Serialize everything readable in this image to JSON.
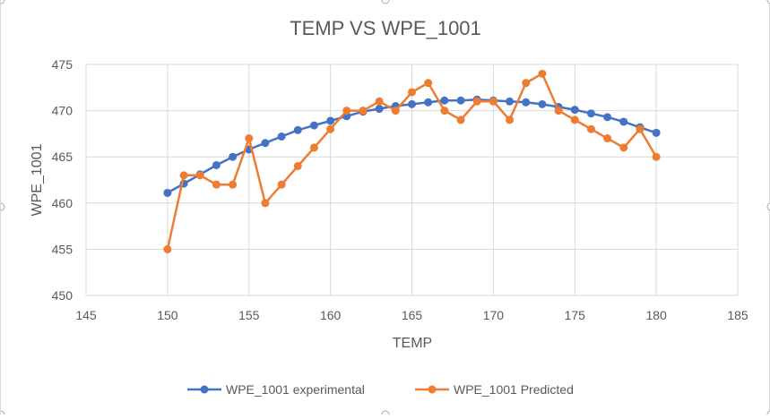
{
  "chart_data": {
    "type": "line",
    "title": "TEMP VS WPE_1001",
    "xlabel": "TEMP",
    "ylabel": "WPE_1001",
    "xlim": [
      145,
      185
    ],
    "ylim": [
      450,
      475
    ],
    "xticks": [
      145,
      150,
      155,
      160,
      165,
      170,
      175,
      180,
      185
    ],
    "yticks": [
      450,
      455,
      460,
      465,
      470,
      475
    ],
    "grid": true,
    "legend": "bottom",
    "series": [
      {
        "name": "WPE_1001 experimental",
        "color": "#4472C4",
        "x": [
          150,
          151,
          152,
          153,
          154,
          155,
          156,
          157,
          158,
          159,
          160,
          161,
          162,
          163,
          164,
          165,
          166,
          167,
          168,
          169,
          170,
          171,
          172,
          173,
          174,
          175,
          176,
          177,
          178,
          179,
          180
        ],
        "y": [
          461.1,
          462.1,
          463.1,
          464.1,
          465,
          465.8,
          466.5,
          467.2,
          467.9,
          468.4,
          468.9,
          469.4,
          469.9,
          470.2,
          470.5,
          470.7,
          470.9,
          471.1,
          471.1,
          471.2,
          471.1,
          471,
          470.9,
          470.7,
          470.4,
          470.1,
          469.7,
          469.3,
          468.8,
          468.2,
          467.6
        ]
      },
      {
        "name": "WPE_1001 Predicted",
        "color": "#ED7D31",
        "x": [
          150,
          151,
          152,
          153,
          154,
          155,
          156,
          157,
          158,
          159,
          160,
          161,
          162,
          163,
          164,
          165,
          166,
          167,
          168,
          169,
          170,
          171,
          172,
          173,
          174,
          175,
          176,
          177,
          178,
          179,
          180
        ],
        "y": [
          455,
          463,
          463,
          462,
          462,
          467,
          460,
          462,
          464,
          466,
          468,
          470,
          470,
          471,
          470,
          472,
          473,
          470,
          469,
          471,
          471,
          469,
          473,
          474,
          470,
          469,
          468,
          467,
          466,
          468,
          465
        ]
      }
    ]
  }
}
